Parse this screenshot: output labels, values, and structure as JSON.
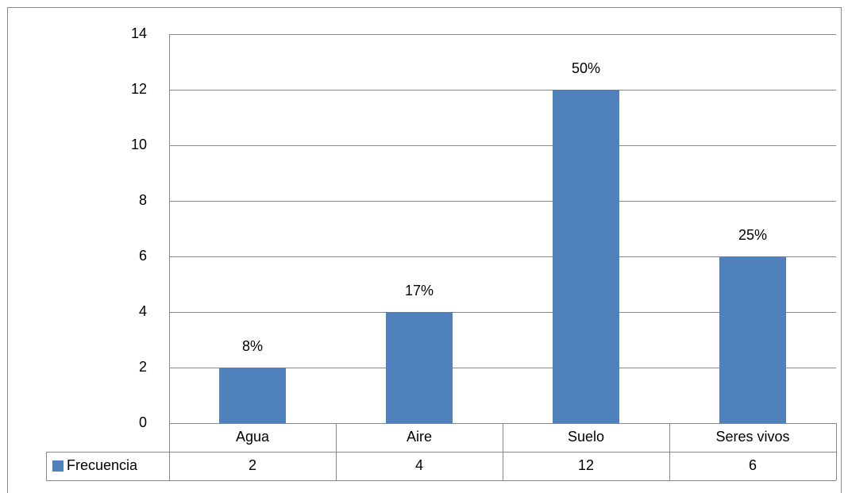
{
  "chart_data": {
    "type": "bar",
    "categories": [
      "Agua",
      "Aire",
      "Suelo",
      "Seres vivos"
    ],
    "series": [
      {
        "name": "Frecuencia",
        "color": "#4f81bd",
        "values": [
          2,
          4,
          12,
          6
        ],
        "value_labels": [
          "8%",
          "17%",
          "50%",
          "25%"
        ]
      }
    ],
    "ylim": [
      0,
      14
    ],
    "yticks": [
      0,
      2,
      4,
      6,
      8,
      10,
      12,
      14
    ],
    "grid": true,
    "data_table": true
  }
}
